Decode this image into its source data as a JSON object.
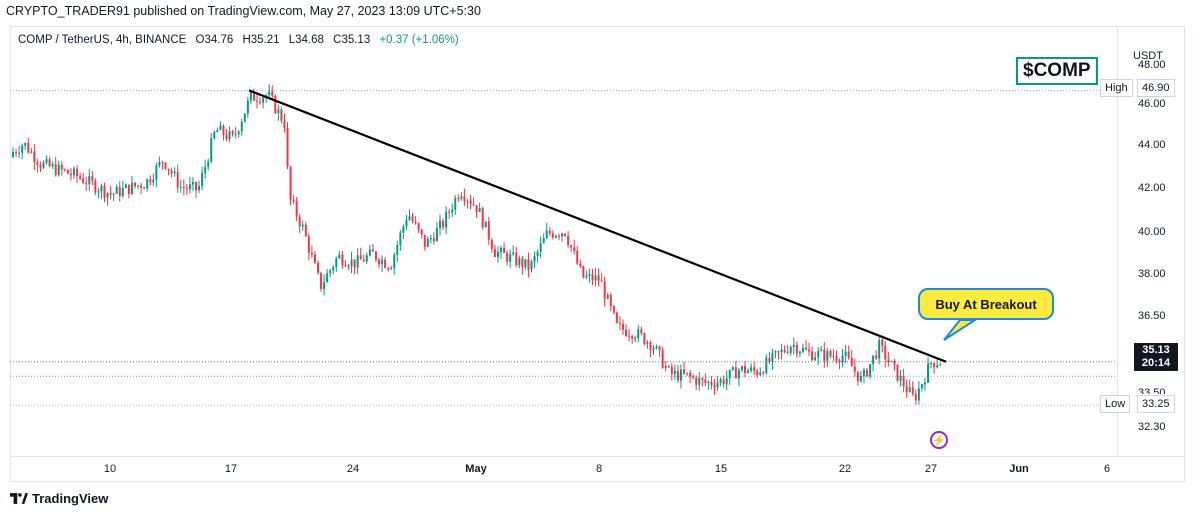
{
  "publisher_line": "CRYPTO_TRADER91 published on TradingView.com, May 27, 2023 13:09 UTC+5:30",
  "symbol": {
    "name": "COMP / TetherUS, 4h, BINANCE",
    "open": "O34.76",
    "high": "H35.21",
    "low": "L34.68",
    "close": "C35.13",
    "change": "+0.37 (+1.06%)"
  },
  "currency": "USDT",
  "ticker_badge": "$COMP",
  "callout": "Buy At Breakout",
  "high_marker": {
    "label": "High",
    "value": "46.90"
  },
  "low_marker": {
    "label": "Low",
    "value": "33.25"
  },
  "last_price": {
    "value": "35.13",
    "countdown": "20:14"
  },
  "price_axis_labels": [
    "48.00",
    "46.00",
    "44.00",
    "42.00",
    "40.00",
    "38.00",
    "36.50",
    "33.50",
    "32.30"
  ],
  "time_axis_labels": [
    "10",
    "17",
    "24",
    "May",
    "8",
    "15",
    "22",
    "27",
    "Jun",
    "6"
  ],
  "brand": "TradingView",
  "colors": {
    "up": "#089981",
    "down": "#f23645",
    "trendline": "#000000",
    "callout_fill": "#ffeb3b",
    "callout_border": "#1e88e5",
    "badge_border": "#089981"
  },
  "chart_data": {
    "type": "candlestick",
    "timeframe": "4h",
    "ylim": [
      31.5,
      49.0
    ],
    "trendline": {
      "start": {
        "date": "Apr 19",
        "price": 46.9
      },
      "end": {
        "date": "May 27",
        "price": 35.13
      }
    },
    "price_path": [
      {
        "date": "Apr 4",
        "price": 44.0
      },
      {
        "date": "Apr 5",
        "price": 44.6
      },
      {
        "date": "Apr 6",
        "price": 43.7
      },
      {
        "date": "Apr 8",
        "price": 43.2
      },
      {
        "date": "Apr 10",
        "price": 42.4
      },
      {
        "date": "Apr 12",
        "price": 42.9
      },
      {
        "date": "Apr 13",
        "price": 43.9
      },
      {
        "date": "Apr 14",
        "price": 42.7
      },
      {
        "date": "Apr 15",
        "price": 42.6
      },
      {
        "date": "Apr 16",
        "price": 45.2
      },
      {
        "date": "Apr 17",
        "price": 44.8
      },
      {
        "date": "Apr 18",
        "price": 46.6
      },
      {
        "date": "Apr 19",
        "price": 46.7
      },
      {
        "date": "Apr 20",
        "price": 45.4
      },
      {
        "date": "Apr 20",
        "price": 42.3
      },
      {
        "date": "Apr 21",
        "price": 40.9
      },
      {
        "date": "Apr 22",
        "price": 38.4
      },
      {
        "date": "Apr 23",
        "price": 39.7
      },
      {
        "date": "Apr 24",
        "price": 39.4
      },
      {
        "date": "Apr 25",
        "price": 39.8
      },
      {
        "date": "Apr 26",
        "price": 39.3
      },
      {
        "date": "Apr 27",
        "price": 41.6
      },
      {
        "date": "Apr 28",
        "price": 40.2
      },
      {
        "date": "Apr 29",
        "price": 41.1
      },
      {
        "date": "Apr 30",
        "price": 42.6
      },
      {
        "date": "May 1",
        "price": 41.8
      },
      {
        "date": "May 2",
        "price": 39.9
      },
      {
        "date": "May 3",
        "price": 39.6
      },
      {
        "date": "May 4",
        "price": 39.2
      },
      {
        "date": "May 5",
        "price": 40.7
      },
      {
        "date": "May 6",
        "price": 40.8
      },
      {
        "date": "May 7",
        "price": 38.8
      },
      {
        "date": "May 8",
        "price": 38.7
      },
      {
        "date": "May 9",
        "price": 36.6
      },
      {
        "date": "May 10",
        "price": 36.4
      },
      {
        "date": "May 11",
        "price": 35.9
      },
      {
        "date": "May 12",
        "price": 34.6
      },
      {
        "date": "May 13",
        "price": 34.5
      },
      {
        "date": "May 14",
        "price": 34.2
      },
      {
        "date": "May 15",
        "price": 34.3
      },
      {
        "date": "May 16",
        "price": 34.8
      },
      {
        "date": "May 17",
        "price": 34.7
      },
      {
        "date": "May 18",
        "price": 35.3
      },
      {
        "date": "May 19",
        "price": 35.9
      },
      {
        "date": "May 20",
        "price": 35.5
      },
      {
        "date": "May 21",
        "price": 35.4
      },
      {
        "date": "May 22",
        "price": 35.4
      },
      {
        "date": "May 23",
        "price": 34.3
      },
      {
        "date": "May 24",
        "price": 35.8
      },
      {
        "date": "May 25",
        "price": 34.6
      },
      {
        "date": "May 26",
        "price": 33.5
      },
      {
        "date": "May 27",
        "price": 35.13
      }
    ]
  }
}
